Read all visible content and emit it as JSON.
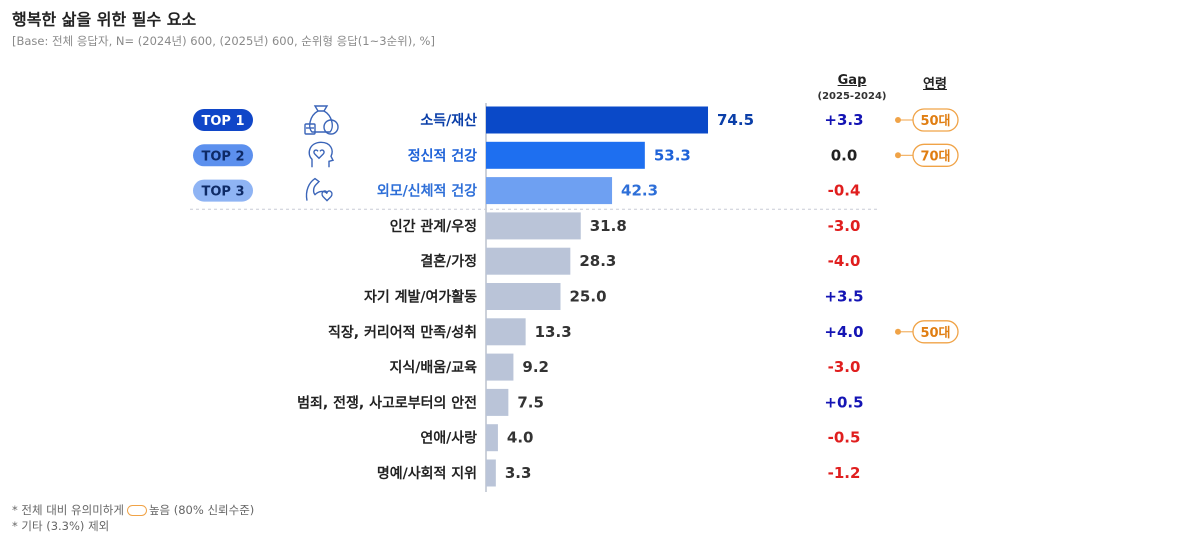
{
  "title": "행복한 삶을 위한 필수 요소",
  "subtitle": "[Base: 전체 응답자, N= (2024년) 600, (2025년) 600, 순위형 응답(1~3순위), %]",
  "headers": {
    "gap": "Gap",
    "gap_sub": "(2025-2024)",
    "age": "연령"
  },
  "footnotes": {
    "line1_prefix": "* 전체 대비 유의미하게",
    "line1_suffix": "높음 (80% 신뢰수준)",
    "line2": "* 기타 (3.3%) 제외"
  },
  "top_badges": [
    "TOP 1",
    "TOP 2",
    "TOP 3"
  ],
  "icons": [
    "money-bag-icon",
    "heart-mind-icon",
    "muscle-heart-icon"
  ],
  "colors": {
    "top1": "#0a49c8",
    "top2": "#1e6ff0",
    "top3": "#6ea0f2",
    "rest": "#bac4d8",
    "gap_pos": "#1414b4",
    "gap_neg": "#e01e1e",
    "age_badge": "#f0a347"
  },
  "chart_data": {
    "type": "bar",
    "orientation": "horizontal",
    "categories": [
      "소득/재산",
      "정신적 건강",
      "외모/신체적 건강",
      "인간 관계/우정",
      "결혼/가정",
      "자기 계발/여가활동",
      "직장, 커리어적 만족/성취",
      "지식/배움/교육",
      "범죄, 전쟁, 사고로부터의 안전",
      "연애/사랑",
      "명예/사회적 지위"
    ],
    "values": [
      74.5,
      53.3,
      42.3,
      31.8,
      28.3,
      25.0,
      13.3,
      9.2,
      7.5,
      4.0,
      3.3
    ],
    "value_labels": [
      "74.5",
      "53.3",
      "42.3",
      "31.8",
      "28.3",
      "25.0",
      "13.3",
      "9.2",
      "7.5",
      "4.0",
      "3.3"
    ],
    "gap": [
      "+3.3",
      "0.0",
      "-0.4",
      "-3.0",
      "-4.0",
      "+3.5",
      "+4.0",
      "-3.0",
      "+0.5",
      "-0.5",
      "-1.2"
    ],
    "age": [
      "50대",
      "70대",
      "",
      "",
      "",
      "",
      "50대",
      "",
      "",
      "",
      ""
    ],
    "xlim": [
      0,
      100
    ]
  }
}
